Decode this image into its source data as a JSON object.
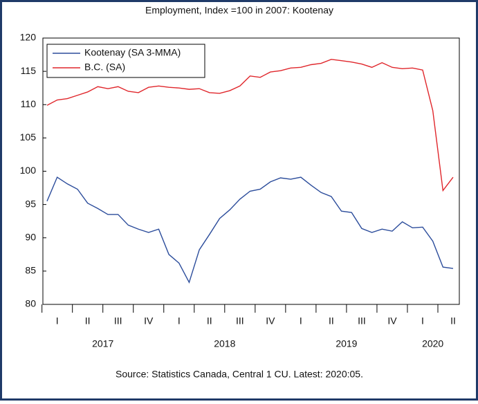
{
  "chart_data": {
    "type": "line",
    "title": "Employment, Index =100 in 2007: Kootenay",
    "source": "Source: Statistics Canada, Central 1 CU. Latest: 2020:05.",
    "categories": [
      null,
      "I",
      null,
      null,
      "II",
      null,
      null,
      "III",
      null,
      null,
      "IV",
      null,
      null,
      "I",
      null,
      null,
      "II",
      null,
      null,
      "III",
      null,
      null,
      "IV",
      null,
      null,
      "I",
      null,
      null,
      "II",
      null,
      null,
      "III",
      null,
      null,
      "IV",
      null,
      null,
      "I",
      null,
      null,
      "II"
    ],
    "year_groups": [
      {
        "label": "2017",
        "months": 12
      },
      {
        "label": "2018",
        "months": 12
      },
      {
        "label": "2019",
        "months": 12
      },
      {
        "label": "2020",
        "months": 5
      }
    ],
    "series": [
      {
        "name": "Kootenay (SA 3-MMA)",
        "color": "#2b4c9b",
        "values": [
          95.5,
          99.1,
          98.1,
          97.3,
          95.2,
          94.4,
          93.5,
          93.5,
          91.9,
          91.3,
          90.8,
          91.3,
          87.5,
          86.2,
          83.3,
          88.2,
          90.5,
          92.9,
          94.2,
          95.8,
          97.0,
          97.3,
          98.4,
          99.0,
          98.8,
          99.1,
          97.9,
          96.8,
          96.2,
          94.0,
          93.8,
          91.4,
          90.8,
          91.3,
          91.0,
          92.4,
          91.5,
          91.6,
          89.5,
          85.6,
          85.4
        ]
      },
      {
        "name": "B.C. (SA)",
        "color": "#e0262b",
        "values": [
          109.9,
          110.7,
          110.9,
          111.4,
          111.9,
          112.7,
          112.4,
          112.7,
          112.0,
          111.8,
          112.6,
          112.8,
          112.6,
          112.5,
          112.3,
          112.4,
          111.8,
          111.7,
          112.1,
          112.8,
          114.3,
          114.1,
          114.9,
          115.1,
          115.5,
          115.6,
          116.0,
          116.2,
          116.8,
          116.6,
          116.4,
          116.1,
          115.6,
          116.3,
          115.6,
          115.4,
          115.5,
          115.2,
          109.1,
          97.1,
          99.1
        ]
      }
    ],
    "ylim": [
      80,
      120
    ],
    "yticks": [
      80,
      85,
      90,
      95,
      100,
      105,
      110,
      115,
      120
    ],
    "legend": "upper left",
    "grid": false
  }
}
